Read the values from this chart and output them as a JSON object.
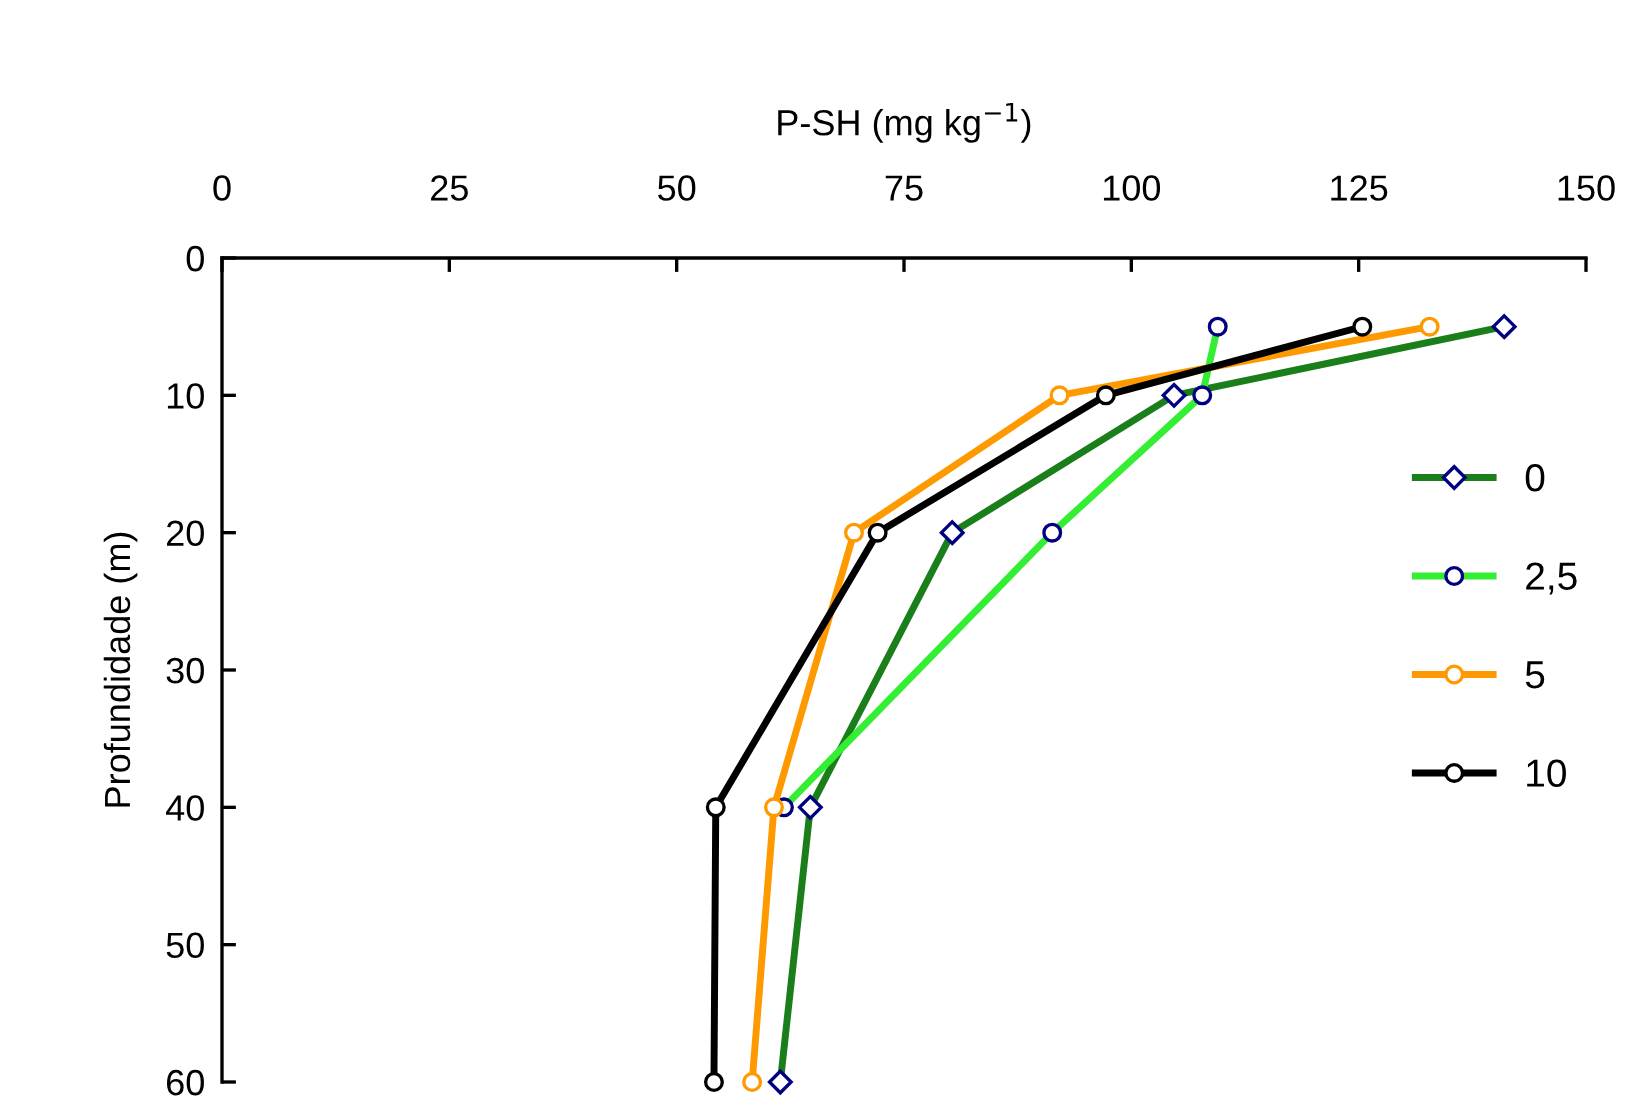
{
  "chart_data": {
    "type": "line",
    "xlabel": "P-SH (mg kg$^{−1}$)",
    "ylabel": "Profundidade (m)",
    "xlim": [
      0,
      150
    ],
    "xticks": [
      0,
      25,
      50,
      75,
      100,
      125,
      150
    ],
    "ylim": [
      60,
      0
    ],
    "yticks": [
      0,
      10,
      20,
      30,
      40,
      50,
      60
    ],
    "grid": false,
    "legend": "right",
    "line_style": "solid",
    "series": [
      {
        "name": "0",
        "color": "#1a7f1a",
        "marker": "diamond",
        "x": [
          141,
          104.7,
          80.3,
          64.7,
          61.4
        ],
        "values": [
          5,
          10,
          20,
          40,
          60
        ]
      },
      {
        "name": "2,5",
        "color": "#33ee33",
        "marker": "circle",
        "x": [
          109.5,
          107.8,
          91.3,
          61.8
        ],
        "values": [
          5,
          10,
          20,
          40
        ]
      },
      {
        "name": "5",
        "color": "#ff9900",
        "marker": "circle",
        "x": [
          132.8,
          92.1,
          69.5,
          60.7,
          58.3
        ],
        "values": [
          5,
          10,
          20,
          40,
          60
        ]
      },
      {
        "name": "10",
        "color": "#000000",
        "marker": "circle",
        "x": [
          125.4,
          97.2,
          72.1,
          54.3,
          54.1
        ],
        "values": [
          5,
          10,
          20,
          40,
          60
        ]
      }
    ]
  }
}
